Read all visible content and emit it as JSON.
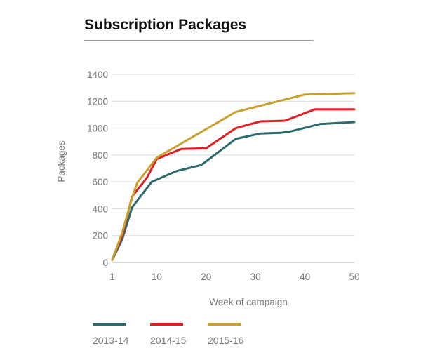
{
  "chart_data": {
    "type": "line",
    "title": "Subscription Packages",
    "xlabel": "Week of campaign",
    "ylabel": "Packages",
    "xlim": [
      1,
      50
    ],
    "ylim": [
      0,
      1400
    ],
    "xticks": [
      "1",
      "10",
      "20",
      "30",
      "40",
      "50"
    ],
    "yticks": [
      "0",
      "200",
      "400",
      "600",
      "800",
      "1000",
      "1200",
      "1400"
    ],
    "grid": true,
    "legend_position": "bottom",
    "series": [
      {
        "name": "2013-14",
        "color": "#2d6b6e",
        "x": [
          1,
          3,
          5,
          9,
          14,
          19,
          21,
          26,
          31,
          35,
          37,
          43,
          50
        ],
        "y": [
          20,
          170,
          410,
          600,
          680,
          725,
          780,
          920,
          960,
          965,
          975,
          1030,
          1045
        ]
      },
      {
        "name": "2014-15",
        "color": "#e01e24",
        "x": [
          1,
          3,
          5,
          8,
          10,
          15,
          20,
          26,
          31,
          36,
          42,
          50
        ],
        "y": [
          20,
          200,
          490,
          630,
          770,
          845,
          850,
          1000,
          1050,
          1055,
          1140,
          1140
        ]
      },
      {
        "name": "2015-16",
        "color": "#c9a02e",
        "x": [
          1,
          3,
          5,
          6,
          10,
          26,
          40,
          50
        ],
        "y": [
          20,
          220,
          480,
          590,
          780,
          1120,
          1250,
          1260
        ]
      }
    ]
  }
}
